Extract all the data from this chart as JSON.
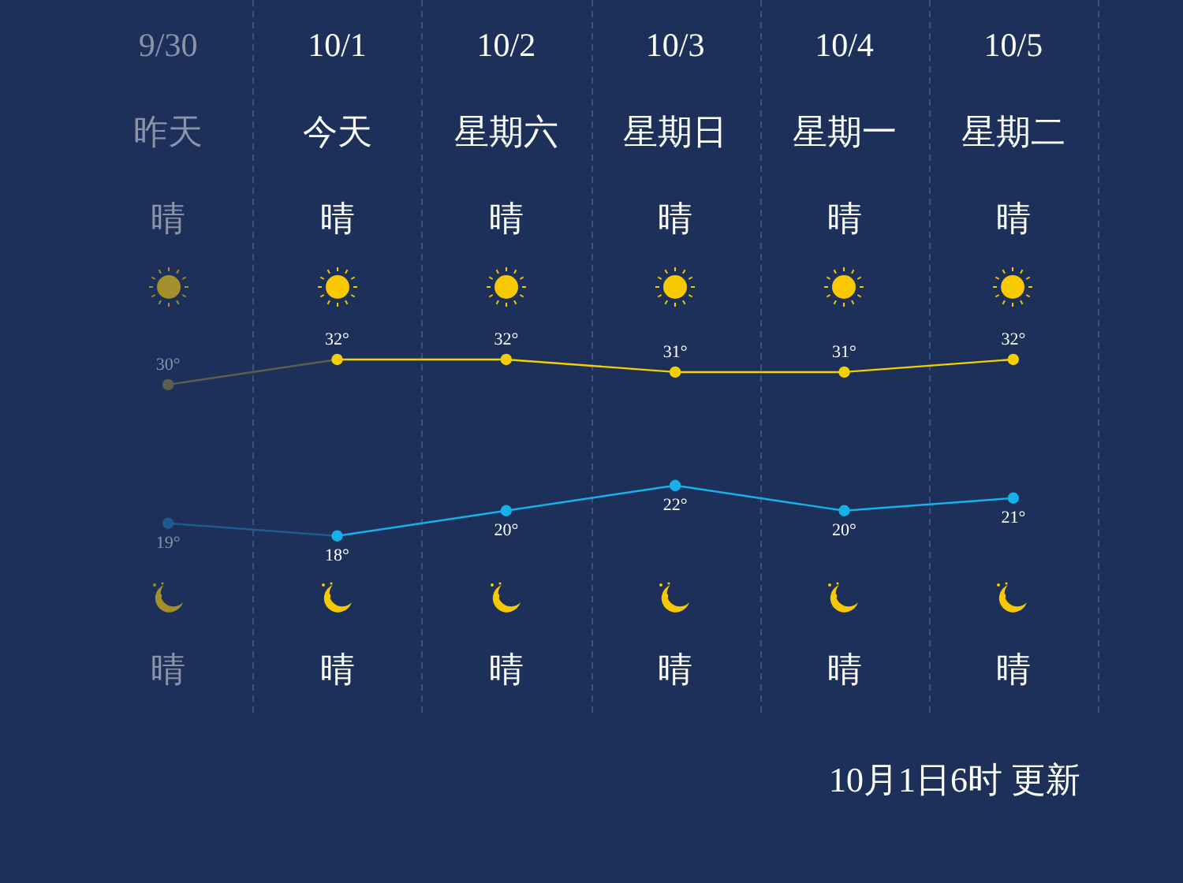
{
  "chart_data": {
    "type": "line",
    "categories": [
      "9/30",
      "10/1",
      "10/2",
      "10/3",
      "10/4",
      "10/5"
    ],
    "series": [
      {
        "color": "#f5cf00",
        "colors": [
          "#5c5f4c",
          "#f5cf00",
          "#f5cf00",
          "#f5cf00",
          "#f5cf00",
          "#f5cf00"
        ],
        "values": [
          30,
          32,
          32,
          31,
          31,
          32
        ],
        "value_labels": [
          "30°",
          "32°",
          "32°",
          "31°",
          "31°",
          "32°"
        ]
      },
      {
        "color": "#16b0ea",
        "colors": [
          "#1c5c8c",
          "#16b0ea",
          "#16b0ea",
          "#16b0ea",
          "#16b0ea",
          "#16b0ea"
        ],
        "values": [
          19,
          18,
          20,
          22,
          20,
          21
        ],
        "value_labels": [
          "19°",
          "18°",
          "20°",
          "22°",
          "20°",
          "21°"
        ]
      }
    ],
    "tick_labels": "x",
    "grid": "x",
    "legend": false,
    "marker": "circle",
    "line_style": "solid",
    "annotations": [
      "昨天",
      "今天",
      "星期六",
      "星期日",
      "星期一",
      "星期二",
      "晴",
      "晴",
      "晴",
      "晴",
      "晴",
      "晴",
      "晴",
      "晴",
      "晴",
      "晴",
      "晴",
      "晴",
      "10月1日6时 更新"
    ]
  }
}
